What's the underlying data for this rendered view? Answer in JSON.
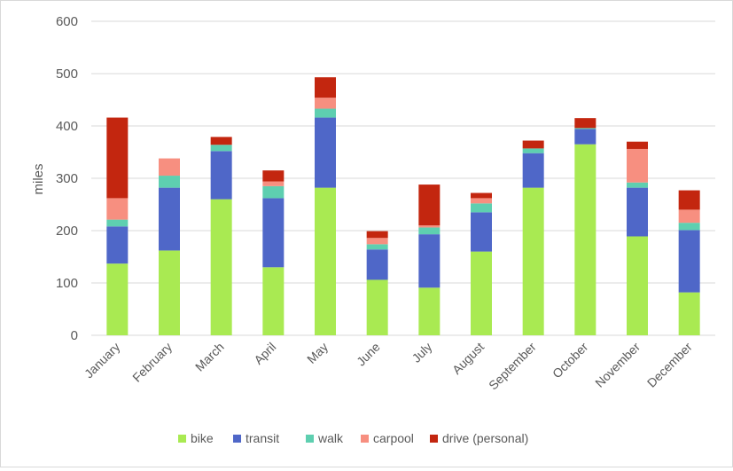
{
  "chart_data": {
    "type": "bar",
    "stacked": true,
    "title": "",
    "xlabel": "",
    "ylabel": "miles",
    "ylim": [
      0,
      600
    ],
    "yticks": [
      0,
      100,
      200,
      300,
      400,
      500,
      600
    ],
    "grid": true,
    "legend_position": "bottom",
    "categories": [
      "January",
      "February",
      "March",
      "April",
      "May",
      "June",
      "July",
      "August",
      "September",
      "October",
      "November",
      "December"
    ],
    "series": [
      {
        "name": "bike",
        "color": "#a9ea52",
        "values": [
          137,
          162,
          260,
          130,
          282,
          106,
          91,
          160,
          282,
          365,
          189,
          82
        ]
      },
      {
        "name": "transit",
        "color": "#4f67c8",
        "values": [
          71,
          120,
          92,
          132,
          134,
          58,
          102,
          75,
          66,
          29,
          93,
          119
        ]
      },
      {
        "name": "walk",
        "color": "#5ecfb0",
        "values": [
          13,
          23,
          12,
          23,
          17,
          10,
          13,
          17,
          9,
          2,
          10,
          14
        ]
      },
      {
        "name": "carpool",
        "color": "#f78f80",
        "values": [
          41,
          33,
          0,
          9,
          21,
          12,
          4,
          10,
          0,
          0,
          64,
          25
        ]
      },
      {
        "name": "drive (personal)",
        "color": "#c3260f",
        "values": [
          154,
          0,
          15,
          21,
          39,
          13,
          78,
          10,
          15,
          19,
          14,
          37
        ]
      }
    ]
  }
}
